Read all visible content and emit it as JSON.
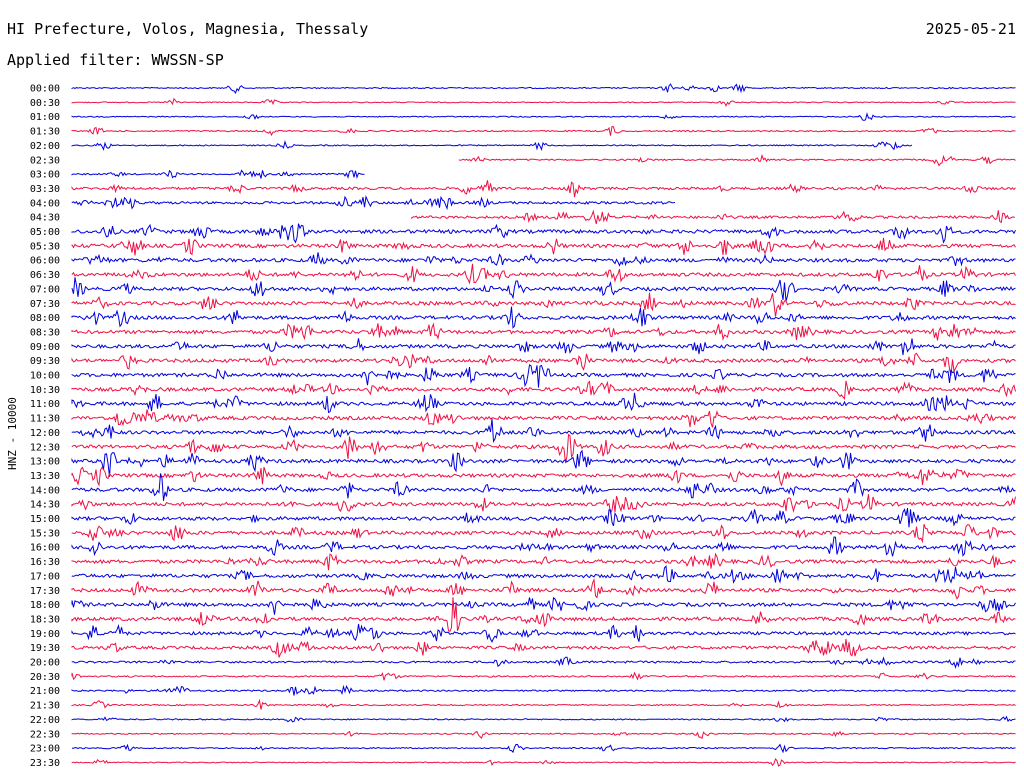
{
  "header": {
    "title": "HI Prefecture, Volos, Magnesia, Thessaly",
    "date": "2025-05-21",
    "filter": "Applied filter: WWSSN-SP"
  },
  "chart_data": {
    "type": "line",
    "title": "HI Prefecture, Volos, Magnesia, Thessaly",
    "subtitle": "Applied filter: WWSSN-SP",
    "date": "2025-05-21",
    "ylabel": "HNZ - 10000",
    "xlabel": "",
    "colors": {
      "blue": "#0000dd",
      "red": "#ee1144"
    },
    "row_colors": [
      "blue",
      "red"
    ],
    "rows": [
      {
        "label": "00:00",
        "start": 0.0,
        "end": 1.0,
        "amp": 1.2
      },
      {
        "label": "00:30",
        "start": 0.0,
        "end": 1.0,
        "amp": 1.0
      },
      {
        "label": "01:00",
        "start": 0.0,
        "end": 1.0,
        "amp": 1.0
      },
      {
        "label": "01:30",
        "start": 0.0,
        "end": 1.0,
        "amp": 1.3
      },
      {
        "label": "02:00",
        "start": 0.0,
        "end": 0.89,
        "amp": 1.2
      },
      {
        "label": "02:30",
        "start": 0.41,
        "end": 1.0,
        "amp": 1.5
      },
      {
        "label": "03:00",
        "start": 0.0,
        "end": 0.31,
        "amp": 1.5
      },
      {
        "label": "03:30",
        "start": 0.0,
        "end": 1.0,
        "amp": 2.5
      },
      {
        "label": "04:00",
        "start": 0.0,
        "end": 0.64,
        "amp": 2.5
      },
      {
        "label": "04:30",
        "start": 0.36,
        "end": 1.0,
        "amp": 2.5
      },
      {
        "label": "05:00",
        "start": 0.0,
        "end": 1.0,
        "amp": 3.5
      },
      {
        "label": "05:30",
        "start": 0.0,
        "end": 1.0,
        "amp": 3.5
      },
      {
        "label": "06:00",
        "start": 0.0,
        "end": 1.0,
        "amp": 3.5
      },
      {
        "label": "06:30",
        "start": 0.0,
        "end": 1.0,
        "amp": 3.5
      },
      {
        "label": "07:00",
        "start": 0.0,
        "end": 1.0,
        "amp": 3.5
      },
      {
        "label": "07:30",
        "start": 0.0,
        "end": 1.0,
        "amp": 3.5
      },
      {
        "label": "08:00",
        "start": 0.0,
        "end": 1.0,
        "amp": 3.5
      },
      {
        "label": "08:30",
        "start": 0.0,
        "end": 1.0,
        "amp": 3.5
      },
      {
        "label": "09:00",
        "start": 0.0,
        "end": 1.0,
        "amp": 3.5
      },
      {
        "label": "09:30",
        "start": 0.0,
        "end": 1.0,
        "amp": 3.5
      },
      {
        "label": "10:00",
        "start": 0.0,
        "end": 1.0,
        "amp": 3.5
      },
      {
        "label": "10:30",
        "start": 0.0,
        "end": 1.0,
        "amp": 3.5
      },
      {
        "label": "11:00",
        "start": 0.0,
        "end": 1.0,
        "amp": 3.5
      },
      {
        "label": "11:30",
        "start": 0.0,
        "end": 1.0,
        "amp": 3.5
      },
      {
        "label": "12:00",
        "start": 0.0,
        "end": 1.0,
        "amp": 3.5
      },
      {
        "label": "12:30",
        "start": 0.0,
        "end": 1.0,
        "amp": 3.5
      },
      {
        "label": "13:00",
        "start": 0.0,
        "end": 1.0,
        "amp": 3.5
      },
      {
        "label": "13:30",
        "start": 0.0,
        "end": 1.0,
        "amp": 3.5
      },
      {
        "label": "14:00",
        "start": 0.0,
        "end": 1.0,
        "amp": 3.5
      },
      {
        "label": "14:30",
        "start": 0.0,
        "end": 1.0,
        "amp": 3.5
      },
      {
        "label": "15:00",
        "start": 0.0,
        "end": 1.0,
        "amp": 3.5
      },
      {
        "label": "15:30",
        "start": 0.0,
        "end": 1.0,
        "amp": 3.5
      },
      {
        "label": "16:00",
        "start": 0.0,
        "end": 1.0,
        "amp": 3.5
      },
      {
        "label": "16:30",
        "start": 0.0,
        "end": 1.0,
        "amp": 3.5
      },
      {
        "label": "17:00",
        "start": 0.0,
        "end": 1.0,
        "amp": 3.5
      },
      {
        "label": "17:30",
        "start": 0.0,
        "end": 1.0,
        "amp": 3.5
      },
      {
        "label": "18:00",
        "start": 0.0,
        "end": 1.0,
        "amp": 3.5
      },
      {
        "label": "18:30",
        "start": 0.0,
        "end": 1.0,
        "amp": 3.5
      },
      {
        "label": "19:00",
        "start": 0.0,
        "end": 1.0,
        "amp": 3.0
      },
      {
        "label": "19:30",
        "start": 0.0,
        "end": 1.0,
        "amp": 3.0
      },
      {
        "label": "20:00",
        "start": 0.0,
        "end": 1.0,
        "amp": 2.0
      },
      {
        "label": "20:30",
        "start": 0.0,
        "end": 1.0,
        "amp": 1.5
      },
      {
        "label": "21:00",
        "start": 0.0,
        "end": 1.0,
        "amp": 1.5
      },
      {
        "label": "21:30",
        "start": 0.0,
        "end": 1.0,
        "amp": 1.2
      },
      {
        "label": "22:00",
        "start": 0.0,
        "end": 1.0,
        "amp": 1.2
      },
      {
        "label": "22:30",
        "start": 0.0,
        "end": 1.0,
        "amp": 1.2
      },
      {
        "label": "23:00",
        "start": 0.0,
        "end": 1.0,
        "amp": 1.2
      },
      {
        "label": "23:30",
        "start": 0.0,
        "end": 1.0,
        "amp": 1.0
      }
    ]
  }
}
